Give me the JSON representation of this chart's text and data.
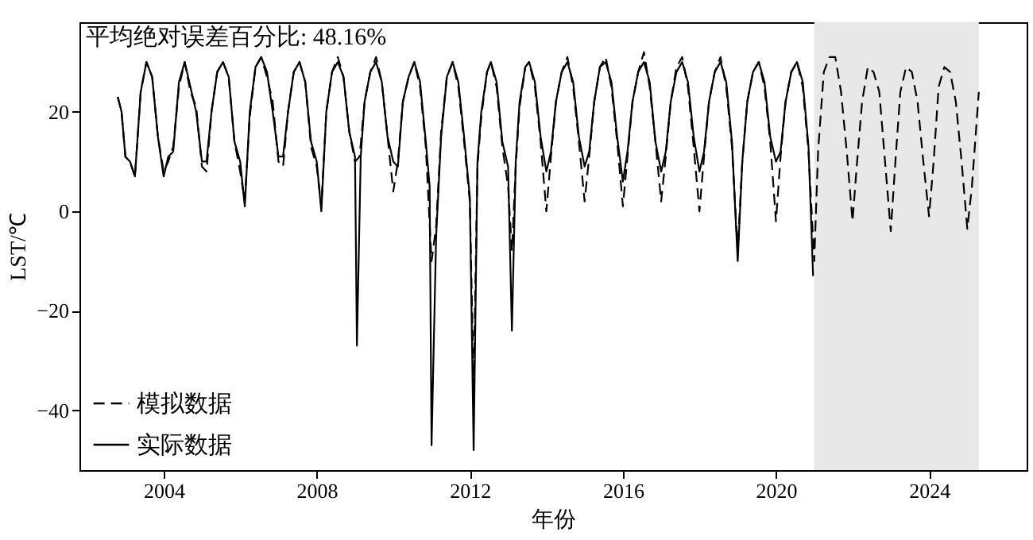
{
  "chart_data": {
    "type": "line",
    "xlabel": "年份",
    "ylabel": "LST/℃",
    "annotations": [
      "平均绝对误差百分比: 48.16%"
    ],
    "xlim": [
      2001.8,
      2026.55
    ],
    "xticks": [
      2004,
      2008,
      2012,
      2016,
      2020,
      2024
    ],
    "ylim": [
      -52,
      38
    ],
    "yticks": [
      -40,
      -20,
      0,
      20
    ],
    "grid": false,
    "legend": "bottom left",
    "marker": "none",
    "bands": [
      {
        "axis": "x",
        "from": 2021,
        "to": 2025.3,
        "color": "#e8e8e8"
      }
    ],
    "series": [
      {
        "name": "模拟数据",
        "color": "#000000",
        "line_style": "dashed",
        "x": [
          2002.8,
          2002.9,
          2003.0,
          2003.12,
          2003.25,
          2003.4,
          2003.55,
          2003.7,
          2003.85,
          2004.0,
          2004.12,
          2004.25,
          2004.4,
          2004.55,
          2004.7,
          2004.85,
          2005.0,
          2005.12,
          2005.25,
          2005.4,
          2005.55,
          2005.7,
          2005.85,
          2006.0,
          2006.12,
          2006.25,
          2006.4,
          2006.55,
          2006.7,
          2006.85,
          2007.0,
          2007.12,
          2007.25,
          2007.4,
          2007.55,
          2007.7,
          2007.85,
          2008.0,
          2008.12,
          2008.25,
          2008.4,
          2008.55,
          2008.7,
          2008.85,
          2009.0,
          2009.12,
          2009.25,
          2009.4,
          2009.55,
          2009.7,
          2009.85,
          2010.0,
          2010.12,
          2010.25,
          2010.4,
          2010.55,
          2010.7,
          2010.85,
          2011.0,
          2011.12,
          2011.25,
          2011.4,
          2011.55,
          2011.7,
          2011.85,
          2012.0,
          2012.1,
          2012.2,
          2012.3,
          2012.45,
          2012.55,
          2012.7,
          2012.85,
          2013.0,
          2013.1,
          2013.2,
          2013.3,
          2013.45,
          2013.55,
          2013.7,
          2013.85,
          2014.0,
          2014.12,
          2014.25,
          2014.4,
          2014.55,
          2014.7,
          2014.85,
          2015.0,
          2015.12,
          2015.25,
          2015.4,
          2015.55,
          2015.7,
          2015.85,
          2016.0,
          2016.12,
          2016.25,
          2016.4,
          2016.55,
          2016.7,
          2016.85,
          2017.0,
          2017.12,
          2017.25,
          2017.4,
          2017.55,
          2017.7,
          2017.85,
          2018.0,
          2018.12,
          2018.25,
          2018.4,
          2018.55,
          2018.7,
          2018.85,
          2019.0,
          2019.12,
          2019.25,
          2019.4,
          2019.55,
          2019.7,
          2019.85,
          2020.0,
          2020.12,
          2020.25,
          2020.4,
          2020.55,
          2020.7,
          2020.85,
          2021.0,
          2021.1,
          2021.25,
          2021.4,
          2021.55,
          2021.7,
          2021.85,
          2022.0,
          2022.12,
          2022.25,
          2022.4,
          2022.55,
          2022.7,
          2022.85,
          2023.0,
          2023.12,
          2023.25,
          2023.4,
          2023.55,
          2023.7,
          2023.85,
          2024.0,
          2024.12,
          2024.25,
          2024.4,
          2024.55,
          2024.7,
          2024.85,
          2025.0,
          2025.12,
          2025.3
        ],
        "values": [
          23,
          20,
          11,
          10,
          7,
          24,
          30,
          27,
          15,
          8,
          10,
          13,
          25,
          30,
          24,
          21,
          9,
          8,
          20,
          28,
          30,
          27,
          14,
          8,
          2,
          19,
          29,
          31,
          27,
          22,
          10,
          9,
          20,
          28,
          30,
          26,
          13,
          9,
          1,
          20,
          28,
          31,
          27,
          16,
          10,
          11,
          22,
          28,
          31,
          26,
          15,
          4,
          10,
          22,
          27,
          30,
          25,
          13,
          -10,
          -3,
          16,
          27,
          30,
          25,
          14,
          2,
          -35,
          9,
          19,
          28,
          30,
          25,
          13,
          5,
          -8,
          9,
          21,
          29,
          30,
          25,
          14,
          0,
          11,
          22,
          28,
          31,
          25,
          14,
          2,
          11,
          22,
          29,
          31,
          25,
          14,
          1,
          11,
          22,
          28,
          32,
          25,
          14,
          2,
          11,
          22,
          29,
          31,
          25,
          13,
          0,
          11,
          22,
          28,
          31,
          25,
          13,
          -8,
          10,
          22,
          28,
          30,
          25,
          14,
          -2,
          11,
          22,
          28,
          30,
          25,
          12,
          -10,
          12,
          28,
          31,
          31,
          24,
          12,
          -2,
          10,
          22,
          29,
          28,
          24,
          10,
          -4,
          10,
          24,
          29,
          28,
          22,
          10,
          -1,
          10,
          25,
          29,
          28,
          22,
          10,
          -3.5,
          5,
          24
        ]
      },
      {
        "name": "实际数据",
        "color": "#000000",
        "line_style": "solid",
        "x": [
          2002.8,
          2002.9,
          2003.0,
          2003.12,
          2003.25,
          2003.4,
          2003.55,
          2003.7,
          2003.85,
          2004.0,
          2004.12,
          2004.25,
          2004.4,
          2004.55,
          2004.7,
          2004.85,
          2005.0,
          2005.12,
          2005.25,
          2005.4,
          2005.55,
          2005.7,
          2005.85,
          2006.0,
          2006.12,
          2006.25,
          2006.4,
          2006.55,
          2006.7,
          2006.85,
          2007.0,
          2007.12,
          2007.25,
          2007.4,
          2007.55,
          2007.7,
          2007.85,
          2008.0,
          2008.12,
          2008.25,
          2008.4,
          2008.55,
          2008.7,
          2008.85,
          2009.0,
          2009.05,
          2009.15,
          2009.25,
          2009.4,
          2009.55,
          2009.7,
          2009.85,
          2010.0,
          2010.12,
          2010.25,
          2010.4,
          2010.55,
          2010.7,
          2010.85,
          2010.95,
          2011.0,
          2011.12,
          2011.25,
          2011.4,
          2011.55,
          2011.7,
          2011.85,
          2012.0,
          2012.1,
          2012.2,
          2012.3,
          2012.45,
          2012.55,
          2012.7,
          2012.85,
          2013.0,
          2013.1,
          2013.2,
          2013.3,
          2013.45,
          2013.55,
          2013.7,
          2013.85,
          2014.0,
          2014.12,
          2014.25,
          2014.4,
          2014.55,
          2014.7,
          2014.85,
          2015.0,
          2015.12,
          2015.25,
          2015.4,
          2015.55,
          2015.7,
          2015.85,
          2016.0,
          2016.12,
          2016.25,
          2016.4,
          2016.55,
          2016.7,
          2016.85,
          2017.0,
          2017.12,
          2017.25,
          2017.4,
          2017.55,
          2017.7,
          2017.85,
          2018.0,
          2018.12,
          2018.25,
          2018.4,
          2018.55,
          2018.7,
          2018.85,
          2019.0,
          2019.12,
          2019.25,
          2019.4,
          2019.55,
          2019.7,
          2019.85,
          2020.0,
          2020.12,
          2020.25,
          2020.4,
          2020.55,
          2020.7,
          2020.85,
          2020.97
        ],
        "values": [
          23,
          20,
          11,
          10,
          7,
          24,
          30,
          27,
          15,
          7,
          11,
          12,
          26,
          30,
          25,
          20,
          10,
          10,
          20,
          28,
          30,
          27,
          14,
          10,
          1,
          20,
          29,
          31,
          28,
          20,
          11,
          11,
          20,
          28,
          30,
          26,
          14,
          10,
          0,
          20,
          28,
          30,
          27,
          16,
          11,
          -27,
          11,
          22,
          28,
          30,
          26,
          15,
          10,
          9,
          22,
          27,
          30,
          26,
          14,
          5,
          -47,
          -5,
          15,
          27,
          30,
          26,
          15,
          3,
          -48,
          10,
          20,
          28,
          30,
          26,
          14,
          9,
          -24,
          10,
          22,
          29,
          30,
          26,
          15,
          8,
          12,
          22,
          28,
          30,
          26,
          15,
          9,
          12,
          22,
          29,
          30,
          26,
          15,
          6,
          12,
          22,
          28,
          30,
          26,
          14,
          8,
          12,
          22,
          28,
          30,
          26,
          15,
          8,
          12,
          22,
          28,
          30,
          26,
          14,
          -10,
          10,
          22,
          28,
          30,
          26,
          15,
          10,
          12,
          22,
          28,
          30,
          26,
          13,
          -13
        ]
      }
    ]
  }
}
